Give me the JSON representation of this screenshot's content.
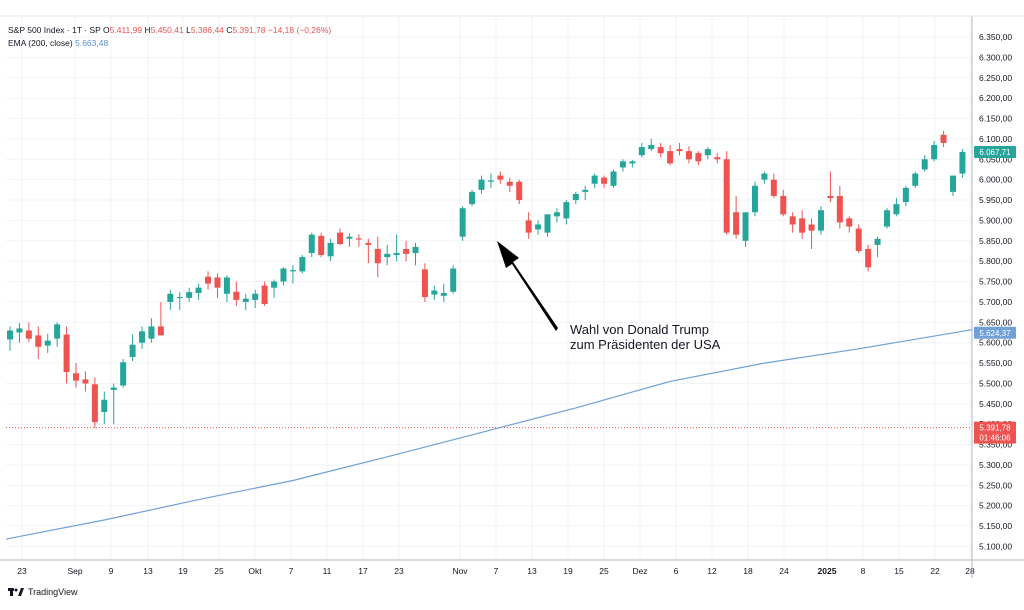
{
  "legend": {
    "symbol": "S&P 500 Index · 1T · SP",
    "open_label": "O",
    "open": "5.411,99",
    "high_label": "H",
    "high": "5.450,41",
    "low_label": "L",
    "low": "5.386,44",
    "close_label": "C",
    "close": "5.391,78",
    "change": "−14,18 (−0,26%)",
    "ema_label": "EMA (200, close)",
    "ema_value": "5.663,48"
  },
  "annotation": {
    "line1": "Wahl von Donald Trump",
    "line2": "zum Präsidenten der USA"
  },
  "price_tags": {
    "ema_upper": "6.067,71",
    "ema_lower": "5.624,37",
    "last_price": "5.391,78",
    "countdown": "01:46:06"
  },
  "brand": {
    "name": "TradingView"
  },
  "colors": {
    "up": "#26a69a",
    "down": "#ef5350",
    "ema": "#6fa1d6",
    "tag_upper": "#26a69a",
    "tag_lower": "#6fa1d6",
    "tag_last": "#ef5350"
  },
  "chart_data": {
    "type": "candlestick",
    "y_ticks": [
      "6.350,00",
      "6.300,00",
      "6.250,00",
      "6.200,00",
      "6.150,00",
      "6.100,00",
      "6.050,00",
      "6.000,00",
      "5.950,00",
      "5.900,00",
      "5.850,00",
      "5.800,00",
      "5.750,00",
      "5.700,00",
      "5.650,00",
      "5.600,00",
      "5.550,00",
      "5.500,00",
      "5.450,00",
      "5.400,00",
      "5.350,00",
      "5.300,00",
      "5.250,00",
      "5.200,00",
      "5.150,00",
      "5.100,00"
    ],
    "y_tick_values": [
      6350,
      6300,
      6250,
      6200,
      6150,
      6100,
      6050,
      6000,
      5950,
      5900,
      5850,
      5800,
      5750,
      5700,
      5650,
      5600,
      5550,
      5500,
      5450,
      5400,
      5350,
      5300,
      5250,
      5200,
      5150,
      5100
    ],
    "x_tick_labels": [
      "23",
      "Sep",
      "9",
      "13",
      "19",
      "25",
      "Okt",
      "7",
      "11",
      "17",
      "23",
      "Nov",
      "7",
      "13",
      "19",
      "25",
      "Dez",
      "6",
      "12",
      "18",
      "24",
      "2025",
      "8",
      "15",
      "22",
      "28"
    ],
    "ylim": [
      5060,
      6390
    ],
    "candles": [
      {
        "o": 5608,
        "h": 5640,
        "l": 5580,
        "c": 5630
      },
      {
        "o": 5625,
        "h": 5648,
        "l": 5600,
        "c": 5635
      },
      {
        "o": 5630,
        "h": 5650,
        "l": 5602,
        "c": 5610
      },
      {
        "o": 5618,
        "h": 5640,
        "l": 5560,
        "c": 5590
      },
      {
        "o": 5593,
        "h": 5622,
        "l": 5575,
        "c": 5605
      },
      {
        "o": 5610,
        "h": 5650,
        "l": 5590,
        "c": 5645
      },
      {
        "o": 5620,
        "h": 5640,
        "l": 5500,
        "c": 5528
      },
      {
        "o": 5525,
        "h": 5550,
        "l": 5490,
        "c": 5507
      },
      {
        "o": 5510,
        "h": 5530,
        "l": 5480,
        "c": 5500
      },
      {
        "o": 5498,
        "h": 5515,
        "l": 5390,
        "c": 5405
      },
      {
        "o": 5430,
        "h": 5480,
        "l": 5400,
        "c": 5460
      },
      {
        "o": 5484,
        "h": 5500,
        "l": 5400,
        "c": 5490
      },
      {
        "o": 5495,
        "h": 5560,
        "l": 5490,
        "c": 5552
      },
      {
        "o": 5565,
        "h": 5620,
        "l": 5555,
        "c": 5595
      },
      {
        "o": 5600,
        "h": 5640,
        "l": 5585,
        "c": 5628
      },
      {
        "o": 5610,
        "h": 5660,
        "l": 5600,
        "c": 5640
      },
      {
        "o": 5640,
        "h": 5700,
        "l": 5620,
        "c": 5618
      },
      {
        "o": 5700,
        "h": 5730,
        "l": 5680,
        "c": 5720
      },
      {
        "o": 5710,
        "h": 5725,
        "l": 5680,
        "c": 5712
      },
      {
        "o": 5710,
        "h": 5735,
        "l": 5700,
        "c": 5724
      },
      {
        "o": 5722,
        "h": 5745,
        "l": 5705,
        "c": 5735
      },
      {
        "o": 5762,
        "h": 5775,
        "l": 5730,
        "c": 5745
      },
      {
        "o": 5760,
        "h": 5770,
        "l": 5710,
        "c": 5735
      },
      {
        "o": 5720,
        "h": 5765,
        "l": 5700,
        "c": 5760
      },
      {
        "o": 5725,
        "h": 5750,
        "l": 5690,
        "c": 5705
      },
      {
        "o": 5700,
        "h": 5720,
        "l": 5680,
        "c": 5708
      },
      {
        "o": 5705,
        "h": 5730,
        "l": 5685,
        "c": 5720
      },
      {
        "o": 5740,
        "h": 5750,
        "l": 5690,
        "c": 5695
      },
      {
        "o": 5735,
        "h": 5755,
        "l": 5710,
        "c": 5750
      },
      {
        "o": 5750,
        "h": 5785,
        "l": 5740,
        "c": 5782
      },
      {
        "o": 5775,
        "h": 5790,
        "l": 5745,
        "c": 5778
      },
      {
        "o": 5775,
        "h": 5815,
        "l": 5770,
        "c": 5810
      },
      {
        "o": 5820,
        "h": 5870,
        "l": 5810,
        "c": 5865
      },
      {
        "o": 5862,
        "h": 5870,
        "l": 5810,
        "c": 5815
      },
      {
        "o": 5812,
        "h": 5855,
        "l": 5800,
        "c": 5845
      },
      {
        "o": 5870,
        "h": 5880,
        "l": 5840,
        "c": 5842
      },
      {
        "o": 5855,
        "h": 5868,
        "l": 5835,
        "c": 5860
      },
      {
        "o": 5856,
        "h": 5866,
        "l": 5835,
        "c": 5853
      },
      {
        "o": 5845,
        "h": 5855,
        "l": 5795,
        "c": 5840
      },
      {
        "o": 5830,
        "h": 5860,
        "l": 5760,
        "c": 5795
      },
      {
        "o": 5810,
        "h": 5840,
        "l": 5790,
        "c": 5818
      },
      {
        "o": 5815,
        "h": 5865,
        "l": 5800,
        "c": 5820
      },
      {
        "o": 5830,
        "h": 5850,
        "l": 5800,
        "c": 5818
      },
      {
        "o": 5820,
        "h": 5845,
        "l": 5790,
        "c": 5835
      },
      {
        "o": 5780,
        "h": 5795,
        "l": 5700,
        "c": 5712
      },
      {
        "o": 5718,
        "h": 5740,
        "l": 5705,
        "c": 5728
      },
      {
        "o": 5715,
        "h": 5745,
        "l": 5700,
        "c": 5722
      },
      {
        "o": 5725,
        "h": 5790,
        "l": 5720,
        "c": 5782
      },
      {
        "o": 5860,
        "h": 5935,
        "l": 5850,
        "c": 5930
      },
      {
        "o": 5940,
        "h": 5975,
        "l": 5935,
        "c": 5970
      },
      {
        "o": 5975,
        "h": 6010,
        "l": 5965,
        "c": 6000
      },
      {
        "o": 5995,
        "h": 6015,
        "l": 5980,
        "c": 5998
      },
      {
        "o": 6010,
        "h": 6020,
        "l": 5990,
        "c": 6000
      },
      {
        "o": 5995,
        "h": 6005,
        "l": 5970,
        "c": 5985
      },
      {
        "o": 5995,
        "h": 6000,
        "l": 5940,
        "c": 5950
      },
      {
        "o": 5900,
        "h": 5920,
        "l": 5855,
        "c": 5870
      },
      {
        "o": 5878,
        "h": 5900,
        "l": 5865,
        "c": 5890
      },
      {
        "o": 5870,
        "h": 5915,
        "l": 5860,
        "c": 5915
      },
      {
        "o": 5910,
        "h": 5930,
        "l": 5895,
        "c": 5920
      },
      {
        "o": 5905,
        "h": 5950,
        "l": 5890,
        "c": 5945
      },
      {
        "o": 5950,
        "h": 5970,
        "l": 5940,
        "c": 5965
      },
      {
        "o": 5970,
        "h": 5985,
        "l": 5950,
        "c": 5975
      },
      {
        "o": 5990,
        "h": 6015,
        "l": 5980,
        "c": 6010
      },
      {
        "o": 6005,
        "h": 6010,
        "l": 5980,
        "c": 5990
      },
      {
        "o": 5985,
        "h": 6025,
        "l": 5980,
        "c": 6020
      },
      {
        "o": 6030,
        "h": 6050,
        "l": 6020,
        "c": 6045
      },
      {
        "o": 6040,
        "h": 6048,
        "l": 6030,
        "c": 6045
      },
      {
        "o": 6060,
        "h": 6090,
        "l": 6055,
        "c": 6080
      },
      {
        "o": 6075,
        "h": 6100,
        "l": 6070,
        "c": 6085
      },
      {
        "o": 6080,
        "h": 6090,
        "l": 6055,
        "c": 6065
      },
      {
        "o": 6070,
        "h": 6085,
        "l": 6035,
        "c": 6040
      },
      {
        "o": 6075,
        "h": 6090,
        "l": 6060,
        "c": 6070
      },
      {
        "o": 6070,
        "h": 6082,
        "l": 6040,
        "c": 6050
      },
      {
        "o": 6065,
        "h": 6070,
        "l": 6035,
        "c": 6045
      },
      {
        "o": 6060,
        "h": 6080,
        "l": 6050,
        "c": 6075
      },
      {
        "o": 6055,
        "h": 6065,
        "l": 6040,
        "c": 6050
      },
      {
        "o": 6050,
        "h": 6070,
        "l": 5865,
        "c": 5870
      },
      {
        "o": 5920,
        "h": 5960,
        "l": 5855,
        "c": 5865
      },
      {
        "o": 5850,
        "h": 5920,
        "l": 5835,
        "c": 5920
      },
      {
        "o": 5920,
        "h": 5995,
        "l": 5910,
        "c": 5985
      },
      {
        "o": 6000,
        "h": 6020,
        "l": 5990,
        "c": 6015
      },
      {
        "o": 6000,
        "h": 6015,
        "l": 5955,
        "c": 5960
      },
      {
        "o": 5960,
        "h": 5975,
        "l": 5910,
        "c": 5915
      },
      {
        "o": 5910,
        "h": 5920,
        "l": 5870,
        "c": 5890
      },
      {
        "o": 5905,
        "h": 5925,
        "l": 5855,
        "c": 5870
      },
      {
        "o": 5890,
        "h": 5905,
        "l": 5830,
        "c": 5875
      },
      {
        "o": 5875,
        "h": 5935,
        "l": 5865,
        "c": 5925
      },
      {
        "o": 5960,
        "h": 6020,
        "l": 5945,
        "c": 5955
      },
      {
        "o": 5960,
        "h": 5985,
        "l": 5880,
        "c": 5895
      },
      {
        "o": 5905,
        "h": 5910,
        "l": 5870,
        "c": 5885
      },
      {
        "o": 5880,
        "h": 5890,
        "l": 5820,
        "c": 5825
      },
      {
        "o": 5830,
        "h": 5840,
        "l": 5775,
        "c": 5785
      },
      {
        "o": 5840,
        "h": 5860,
        "l": 5810,
        "c": 5855
      },
      {
        "o": 5885,
        "h": 5930,
        "l": 5880,
        "c": 5925
      },
      {
        "o": 5915,
        "h": 5955,
        "l": 5910,
        "c": 5940
      },
      {
        "o": 5945,
        "h": 5985,
        "l": 5935,
        "c": 5980
      },
      {
        "o": 5985,
        "h": 6020,
        "l": 5980,
        "c": 6015
      },
      {
        "o": 6025,
        "h": 6060,
        "l": 6020,
        "c": 6050
      },
      {
        "o": 6050,
        "h": 6095,
        "l": 6045,
        "c": 6085
      },
      {
        "o": 6110,
        "h": 6120,
        "l": 6080,
        "c": 6090
      },
      {
        "o": 5970,
        "h": 6010,
        "l": 5960,
        "c": 6010
      },
      {
        "o": 6015,
        "h": 6075,
        "l": 6005,
        "c": 6068
      }
    ],
    "ema": [
      {
        "i": 0,
        "v": 5120
      },
      {
        "i": 10,
        "v": 5165
      },
      {
        "i": 20,
        "v": 5215
      },
      {
        "i": 30,
        "v": 5262
      },
      {
        "i": 40,
        "v": 5320
      },
      {
        "i": 50,
        "v": 5380
      },
      {
        "i": 60,
        "v": 5440
      },
      {
        "i": 70,
        "v": 5505
      },
      {
        "i": 80,
        "v": 5550
      },
      {
        "i": 90,
        "v": 5585
      },
      {
        "i": 101,
        "v": 5628
      }
    ]
  }
}
